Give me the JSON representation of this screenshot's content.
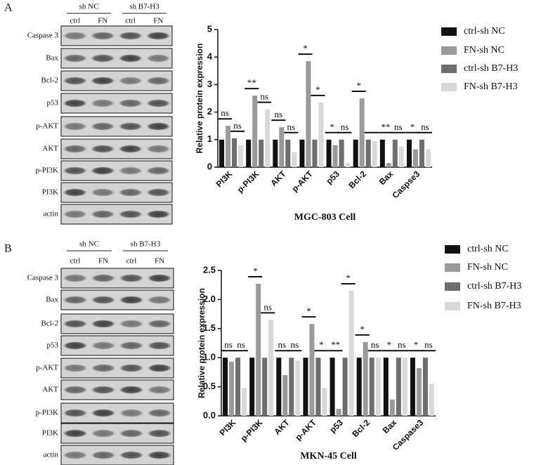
{
  "panels": [
    {
      "letter": "A",
      "groups": [
        "sh NC",
        "sh B7-H3"
      ],
      "lanes": [
        "ctrl",
        "FN",
        "ctrl",
        "FN"
      ],
      "rows": [
        "Caspase 3",
        "Bax",
        "Bcl-2",
        "p53",
        "p-AKT",
        "AKT",
        "p-PI3K",
        "PI3K",
        "actin"
      ]
    },
    {
      "letter": "B",
      "groups": [
        "sh NC",
        "sh B7-H3"
      ],
      "lanes": [
        "ctrl",
        "FN",
        "ctrl",
        "FN"
      ],
      "rows": [
        "Caspase 3",
        "Bax",
        "Bcl-2",
        "p53",
        "p-AKT",
        "AKT",
        "p-PI3K",
        "PI3K",
        "actin"
      ]
    }
  ],
  "chart_data": [
    {
      "type": "bar",
      "y_label": "Relative  protein  expression",
      "x_label": "MGC-803 Cell",
      "categories": [
        "PI3K",
        "p-PI3K",
        "AKT",
        "p-AKT",
        "p53",
        "Bcl-2",
        "Bax",
        "Caspse3"
      ],
      "series": [
        {
          "name": "ctrl-sh NC",
          "color": "#111111",
          "values": [
            1.0,
            1.0,
            1.0,
            1.0,
            1.0,
            1.0,
            1.0,
            1.0
          ]
        },
        {
          "name": "FN-sh NC",
          "color": "#9a9a9a",
          "values": [
            1.5,
            2.6,
            1.45,
            3.85,
            0.8,
            2.5,
            0.15,
            0.65
          ]
        },
        {
          "name": "ctrl-sh B7-H3",
          "color": "#6e6e6e",
          "values": [
            1.05,
            1.0,
            1.0,
            1.0,
            1.0,
            1.0,
            1.0,
            1.0
          ]
        },
        {
          "name": "FN-sh B7-H3",
          "color": "#d9d9d9",
          "values": [
            0.8,
            2.1,
            0.55,
            2.35,
            0.15,
            0.95,
            0.75,
            0.65
          ]
        }
      ],
      "sig_left": [
        "ns",
        "**",
        "ns",
        "*",
        "*",
        "*",
        "**",
        "*"
      ],
      "sig_right": [
        "ns",
        "ns",
        "ns",
        "*",
        "ns",
        null,
        "ns",
        "ns"
      ],
      "ylim": [
        0,
        5
      ],
      "yticks": [
        0,
        1,
        2,
        3,
        4,
        5
      ]
    },
    {
      "type": "bar",
      "y_label": "Relative  protein  expression",
      "x_label": "MKN-45 Cell",
      "categories": [
        "PI3K",
        "p-PI3K",
        "AKT",
        "p-AKT",
        "p53",
        "Bcl-2",
        "Bax",
        "Caspase3"
      ],
      "series": [
        {
          "name": "ctrl-sh NC",
          "color": "#111111",
          "values": [
            1.0,
            1.0,
            1.0,
            1.0,
            1.0,
            1.0,
            1.0,
            1.0
          ]
        },
        {
          "name": "FN-sh NC",
          "color": "#9a9a9a",
          "values": [
            0.93,
            2.27,
            0.7,
            1.58,
            0.12,
            1.27,
            0.28,
            0.82
          ]
        },
        {
          "name": "ctrl-sh B7-H3",
          "color": "#6e6e6e",
          "values": [
            1.0,
            1.0,
            1.0,
            1.0,
            1.0,
            1.0,
            1.0,
            1.0
          ]
        },
        {
          "name": "FN-sh B7-H3",
          "color": "#d9d9d9",
          "values": [
            0.48,
            1.65,
            0.95,
            0.48,
            2.15,
            1.0,
            1.0,
            0.55
          ]
        }
      ],
      "sig_left": [
        "ns",
        "*",
        "ns",
        "*",
        "**",
        "*",
        "*",
        "*"
      ],
      "sig_right": [
        "ns",
        "ns",
        "ns",
        "*",
        "*",
        "ns",
        "ns",
        "ns"
      ],
      "ylim": [
        0,
        2.5
      ],
      "yticks": [
        {
          "value": 0,
          "label": "0.0"
        },
        {
          "value": 0.5,
          "label": "0.5"
        },
        {
          "value": 1,
          "label": "1.0"
        },
        {
          "value": 1.5,
          "label": "1.5"
        },
        {
          "value": 2,
          "label": "2.0"
        },
        {
          "value": 2.5,
          "label": "2.5"
        }
      ]
    }
  ]
}
